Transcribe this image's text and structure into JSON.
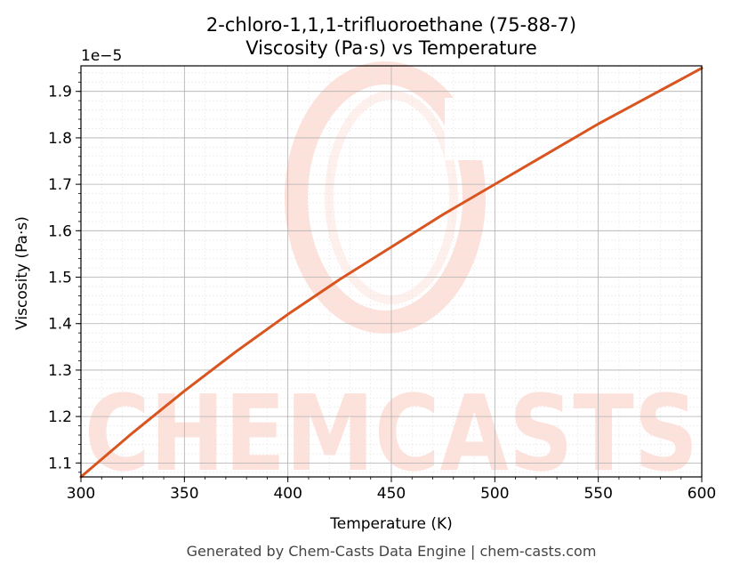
{
  "chart_data": {
    "type": "line",
    "title": "2-chloro-1,1,1-trifluoroethane (75-88-7)",
    "subtitle": "Viscosity (Pa·s) vs Temperature",
    "xlabel": "Temperature (K)",
    "ylabel": "Viscosity (Pa·s)",
    "y_offset_label": "1e−5",
    "xlim": [
      300,
      600
    ],
    "ylim": [
      1.07,
      1.955
    ],
    "x_ticks": [
      300,
      350,
      400,
      450,
      500,
      550,
      600
    ],
    "x_tick_labels": [
      "300",
      "350",
      "400",
      "450",
      "500",
      "550",
      "600"
    ],
    "y_ticks": [
      1.1,
      1.2,
      1.3,
      1.4,
      1.5,
      1.6,
      1.7,
      1.8,
      1.9
    ],
    "y_tick_labels": [
      "1.1",
      "1.2",
      "1.3",
      "1.4",
      "1.5",
      "1.6",
      "1.7",
      "1.8",
      "1.9"
    ],
    "grid": true,
    "series": [
      {
        "color": "#d9541e",
        "x": [
          300,
          325,
          350,
          375,
          400,
          425,
          450,
          475,
          500,
          525,
          550,
          575,
          600
        ],
        "y": [
          1.07,
          1.165,
          1.255,
          1.34,
          1.42,
          1.495,
          1.565,
          1.635,
          1.7,
          1.765,
          1.83,
          1.89,
          1.95
        ]
      }
    ]
  },
  "footer": "Generated by Chem-Casts Data Engine | chem-casts.com",
  "watermark": "CHEMCASTS"
}
